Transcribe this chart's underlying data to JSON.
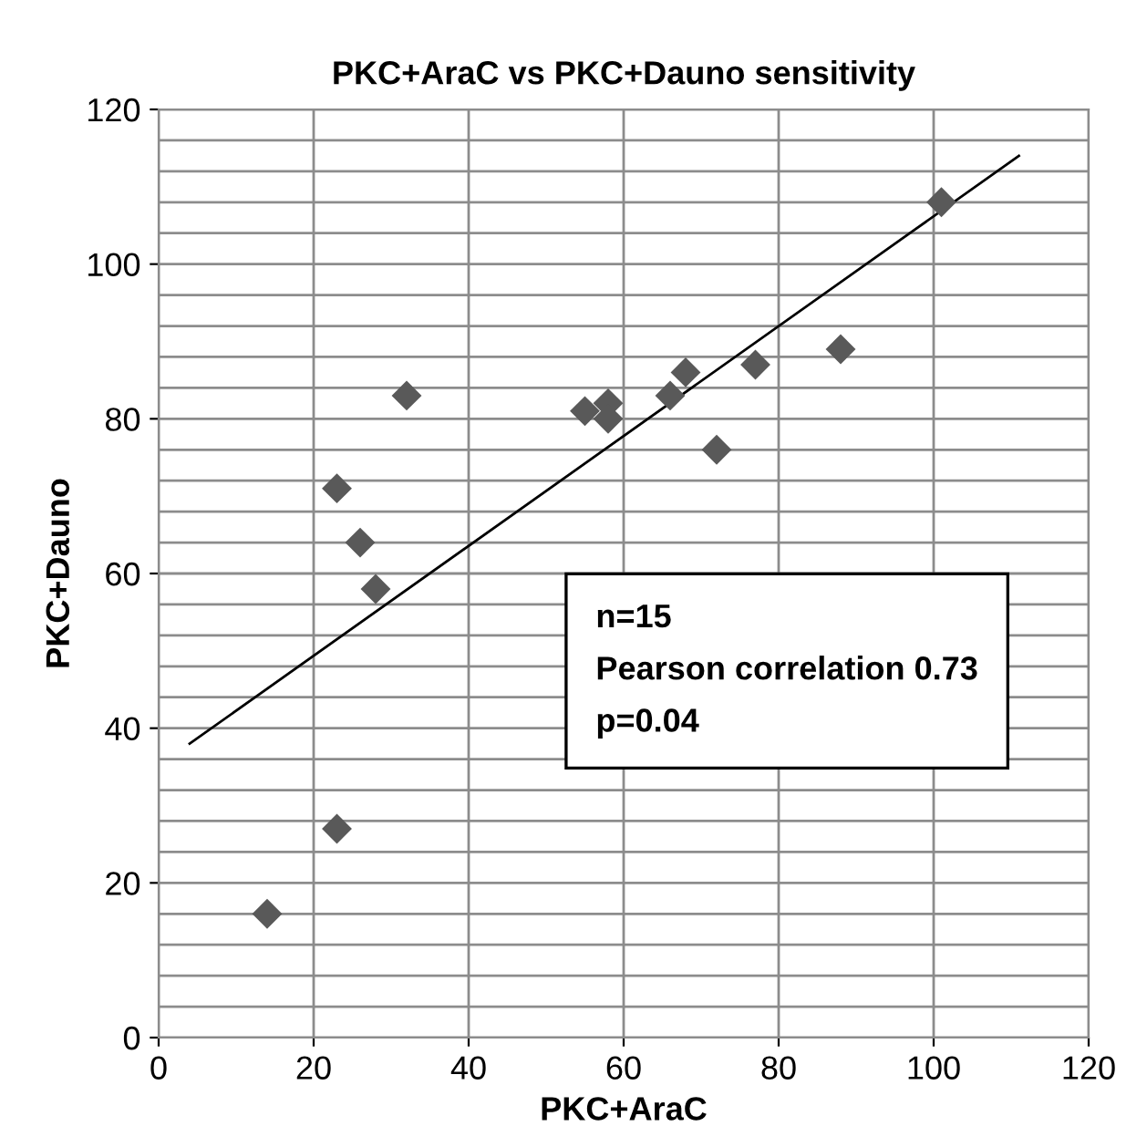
{
  "chart_data": {
    "type": "scatter",
    "title": "PKC+AraC vs PKC+Dauno sensitivity",
    "xlabel": "PKC+AraC",
    "ylabel": "PKC+Dauno",
    "annotations": [
      "n=15\nPearson correlation 0.73\np=0.04"
    ],
    "series": [
      {
        "color": "#595959",
        "marker": "diamond",
        "x": [
          14,
          23,
          23,
          26,
          28,
          32,
          55,
          58,
          58,
          66,
          68,
          72,
          77,
          88,
          101
        ],
        "values": [
          16,
          27,
          71,
          64,
          58,
          83,
          81,
          82,
          80,
          83,
          86,
          76,
          87,
          89,
          108
        ]
      },
      {
        "type": "line",
        "color": "#000000",
        "marker": "none",
        "x": [
          4,
          111
        ],
        "values": [
          38,
          114
        ]
      }
    ],
    "xlim": [
      0,
      120
    ],
    "xticks": [
      0,
      20,
      40,
      60,
      80,
      100,
      120
    ],
    "ylim": [
      0,
      120
    ],
    "yticks": [
      0,
      {
        "value": 4,
        "label": null
      },
      {
        "value": 8,
        "label": null
      },
      {
        "value": 12,
        "label": null
      },
      {
        "value": 16,
        "label": null
      },
      20,
      {
        "value": 24,
        "label": null
      },
      {
        "value": 28,
        "label": null
      },
      {
        "value": 32,
        "label": null
      },
      {
        "value": 36,
        "label": null
      },
      40,
      {
        "value": 44,
        "label": null
      },
      {
        "value": 48,
        "label": null
      },
      {
        "value": 52,
        "label": null
      },
      {
        "value": 56,
        "label": null
      },
      60,
      {
        "value": 64,
        "label": null
      },
      {
        "value": 68,
        "label": null
      },
      {
        "value": 72,
        "label": null
      },
      {
        "value": 76,
        "label": null
      },
      80,
      {
        "value": 84,
        "label": null
      },
      {
        "value": 88,
        "label": null
      },
      {
        "value": 92,
        "label": null
      },
      {
        "value": 96,
        "label": null
      },
      100,
      {
        "value": 104,
        "label": null
      },
      {
        "value": 108,
        "label": null
      },
      {
        "value": 112,
        "label": null
      },
      {
        "value": 116,
        "label": null
      },
      120
    ],
    "grid": true
  }
}
